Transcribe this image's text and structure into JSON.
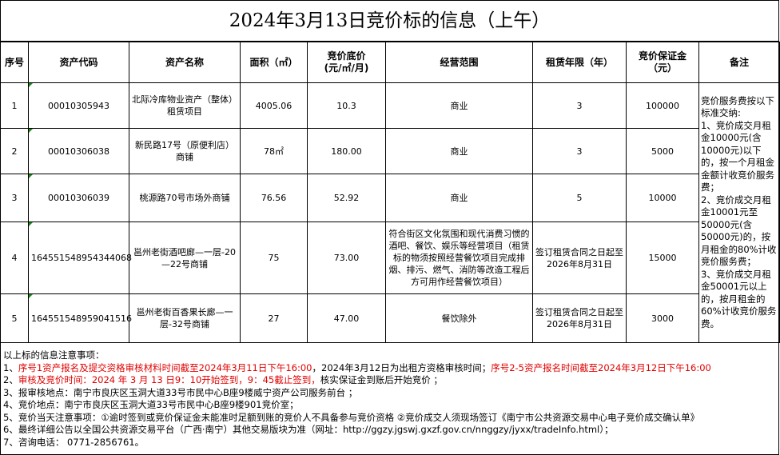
{
  "title": "2024年3月13日竞价标的信息（上午）",
  "headers": [
    "序号",
    "资产代码",
    "资产名称",
    "面积（㎡）",
    "竞价底价\n(元/㎡/月)",
    "经营范围",
    "租赁年限（年）",
    "竞价保证金\n（元）",
    "备注"
  ],
  "rows": [
    {
      "no": "1",
      "code": "00010305943",
      "name": "北际冷库物业资产（整体）租赁项目",
      "area": "4005.06",
      "price": "10.3",
      "scope": "商业",
      "term": "3",
      "deposit": "100000"
    },
    {
      "no": "2",
      "code": "00010306038",
      "name": "新民路17号（原便利店）商铺",
      "area": "78㎡",
      "price": "180.00",
      "scope": "商业",
      "term": "3",
      "deposit": "5000"
    },
    {
      "no": "3",
      "code": "00010306039",
      "name": "桃源路70号市场外商铺",
      "area": "76.56",
      "price": "52.92",
      "scope": "商业",
      "term": "5",
      "deposit": "10000"
    },
    {
      "no": "4",
      "code": "164551548954344068",
      "name": "邕州老街酒吧廊—一层-20—22号商铺",
      "area": "75",
      "price": "73.00",
      "scope": "符合街区文化氛围和现代消费习惯的酒吧、餐饮、娱乐等经营项目（租赁标的物须按照经营餐饮项目完成排烟、排污、燃气、消防等改造工程后方可用作经营餐饮项目）",
      "term": "签订租赁合同之日起至2026年8月31日",
      "deposit": "15000"
    },
    {
      "no": "5",
      "code": "164551548959041516",
      "name": "邕州老街百香果长廊—一层-32号商铺",
      "area": "27",
      "price": "47.00",
      "scope": "餐饮除外",
      "term": "签订租赁合同之日起至2026年8月31日",
      "deposit": "3000"
    }
  ],
  "remark": "竞价服务费按以下标准交纳:\n1、竞价成交月租金10000元(含10000元)以下的，按一个月租金金额计收竞价服务费；\n2、竞价成交月租金10001元至50000元(含50000元)的，按月租金的80%计收竞价服务费；\n3、竞价成交月租金50001元以上的，按月租金的60%计收竞价服务费。",
  "notes": {
    "heading": "以上标的信息注意事项：",
    "n1_prefix": "1、",
    "n1_red1": "序号1资产报名及提交资格审核材料时间截至2024年3月11日下午16:00",
    "n1_black": "，2024年3月12日为出租方资格审核时间；",
    "n1_red2": "序号2-5资产报名时间截至2024年3月12日下午16:00",
    "n2_prefix": "2、",
    "n2_red": "审核及竞价时间：2024 年 3 月 13 日9：10开始签到，9：45截止签到，",
    "n2_black": "核实保证金到账后开始竞价 ；",
    "n3": "3、报审核地点：南宁市良庆区玉洞大道33号市民中心B座9楼威宁资产公司服务前台 ；",
    "n4": "4、竞价地点：南宁市良庆区玉洞大道33号市民中心B座9楼901竞价室；",
    "n5": "5、竞价当天注意事项：①逾时签到或竞价保证金未能准时足额到账的竞价人不具备参与竞价资格 ②竞价成交人须现场签订《南宁市公共资源交易中心电子竞价成交确认单》",
    "n6": "6、最终详细公告以全国公共资源交易平台（广西·南宁）其他交易版块为准（网址：http://ggzy.jgswj.gxzf.gov.cn/nnggzy/jyxx/tradeInfo.html）；",
    "n7": "7、咨询电话： 0771-2856761。"
  },
  "colors": {
    "red": "#e00000",
    "marker": "#1a8a1a"
  }
}
